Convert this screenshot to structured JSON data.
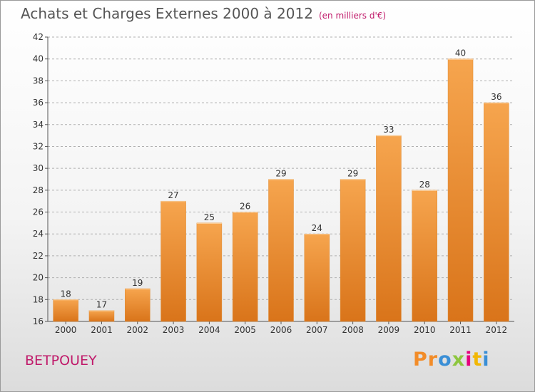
{
  "header": {
    "title": "Achats et Charges Externes 2000 à 2012",
    "unit": "(en milliers d'€)"
  },
  "footer": {
    "commune": "BETPOUEY",
    "brand": "Proxiti",
    "brand_letters": [
      "P",
      "r",
      "o",
      "x",
      "i",
      "t",
      "i"
    ],
    "brand_colors": [
      "#f28c28",
      "#f28c28",
      "#3a8fd6",
      "#8dc63f",
      "#e6007e",
      "#f2b705",
      "#3a8fd6"
    ]
  },
  "colors": {
    "bar_light": "#f6a54e",
    "bar_dark": "#d9741a",
    "grid": "#b0b0b0",
    "title": "#555555",
    "accent": "#c01a6a"
  },
  "chart_data": {
    "type": "bar",
    "title": "Achats et Charges Externes 2000 à 2012",
    "subtitle": "(en milliers d'€)",
    "categories": [
      "2000",
      "2001",
      "2002",
      "2003",
      "2004",
      "2005",
      "2006",
      "2007",
      "2008",
      "2009",
      "2010",
      "2011",
      "2012"
    ],
    "values": [
      18,
      17,
      19,
      27,
      25,
      26,
      29,
      24,
      29,
      33,
      28,
      40,
      36
    ],
    "ylim": [
      16,
      42
    ],
    "yticks": [
      16,
      18,
      20,
      22,
      24,
      26,
      28,
      30,
      32,
      34,
      36,
      38,
      40,
      42
    ],
    "grid": true,
    "data_labels": true
  }
}
